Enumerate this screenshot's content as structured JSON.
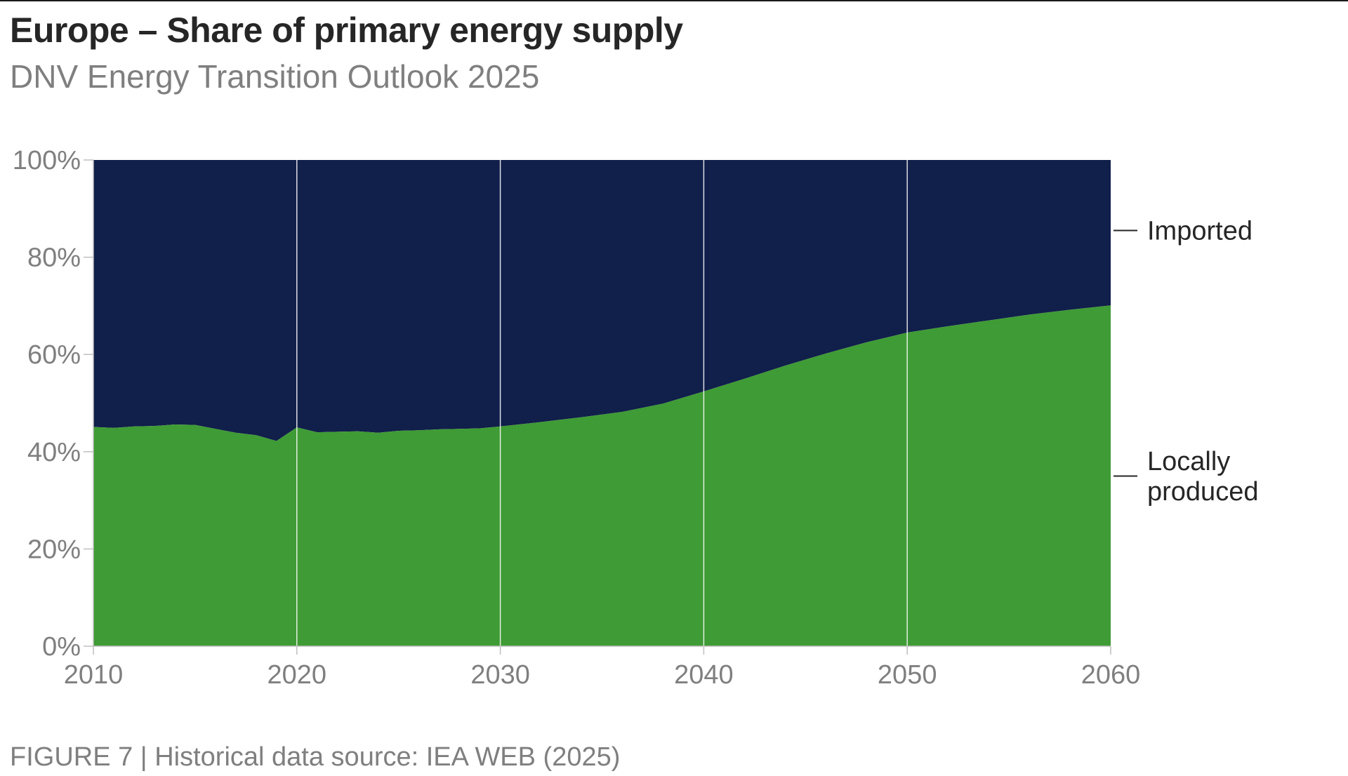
{
  "title": "Europe – Share of primary energy supply",
  "subtitle": "DNV Energy Transition Outlook 2025",
  "footer": "FIGURE 7 | Historical data source: IEA WEB (2025)",
  "colors": {
    "imported": "#111f4b",
    "local": "#3f9b35",
    "gridline": "#ffffff"
  },
  "chart_data": {
    "type": "area",
    "stacked": true,
    "percent_axis": true,
    "title": "Europe – Share of primary energy supply",
    "xlabel": "",
    "ylabel": "",
    "xlim": [
      2010,
      2060
    ],
    "ylim": [
      0,
      100
    ],
    "x_ticks": [
      2010,
      2020,
      2030,
      2040,
      2050,
      2060
    ],
    "x_tick_labels": [
      "2010",
      "2020",
      "2030",
      "2040",
      "2050",
      "2060"
    ],
    "y_ticks": [
      0,
      20,
      40,
      60,
      80,
      100
    ],
    "y_tick_labels": [
      "0%",
      "20%",
      "40%",
      "60%",
      "80%",
      "100%"
    ],
    "vertical_gridlines": [
      2020,
      2030,
      2040,
      2050
    ],
    "x": [
      2010,
      2011,
      2012,
      2013,
      2014,
      2015,
      2016,
      2017,
      2018,
      2019,
      2020,
      2021,
      2022,
      2023,
      2024,
      2025,
      2026,
      2027,
      2028,
      2029,
      2030,
      2032,
      2034,
      2036,
      2038,
      2040,
      2042,
      2044,
      2046,
      2048,
      2050,
      2052,
      2054,
      2056,
      2058,
      2060
    ],
    "series": [
      {
        "name": "Locally produced",
        "legend_label_lines": [
          "Locally",
          "produced"
        ],
        "legend_value_y": 35,
        "values": [
          45.1,
          44.9,
          45.2,
          45.3,
          45.6,
          45.5,
          44.7,
          43.9,
          43.4,
          42.2,
          45.0,
          44.0,
          44.1,
          44.2,
          43.9,
          44.3,
          44.4,
          44.6,
          44.7,
          44.8,
          45.2,
          46.1,
          47.1,
          48.2,
          49.9,
          52.4,
          55.0,
          57.7,
          60.2,
          62.5,
          64.5,
          65.8,
          67.0,
          68.2,
          69.2,
          70.1
        ]
      },
      {
        "name": "Imported",
        "legend_label_lines": [
          "Imported"
        ],
        "legend_value_y": 85.5,
        "values": [
          54.9,
          55.1,
          54.8,
          54.7,
          54.4,
          54.5,
          55.3,
          56.1,
          56.6,
          57.8,
          55.0,
          56.0,
          55.9,
          55.8,
          56.1,
          55.7,
          55.6,
          55.4,
          55.3,
          55.2,
          54.8,
          53.9,
          52.9,
          51.8,
          50.1,
          47.6,
          45.0,
          42.3,
          39.8,
          37.5,
          35.5,
          34.2,
          33.0,
          31.8,
          30.8,
          29.9
        ]
      }
    ]
  }
}
